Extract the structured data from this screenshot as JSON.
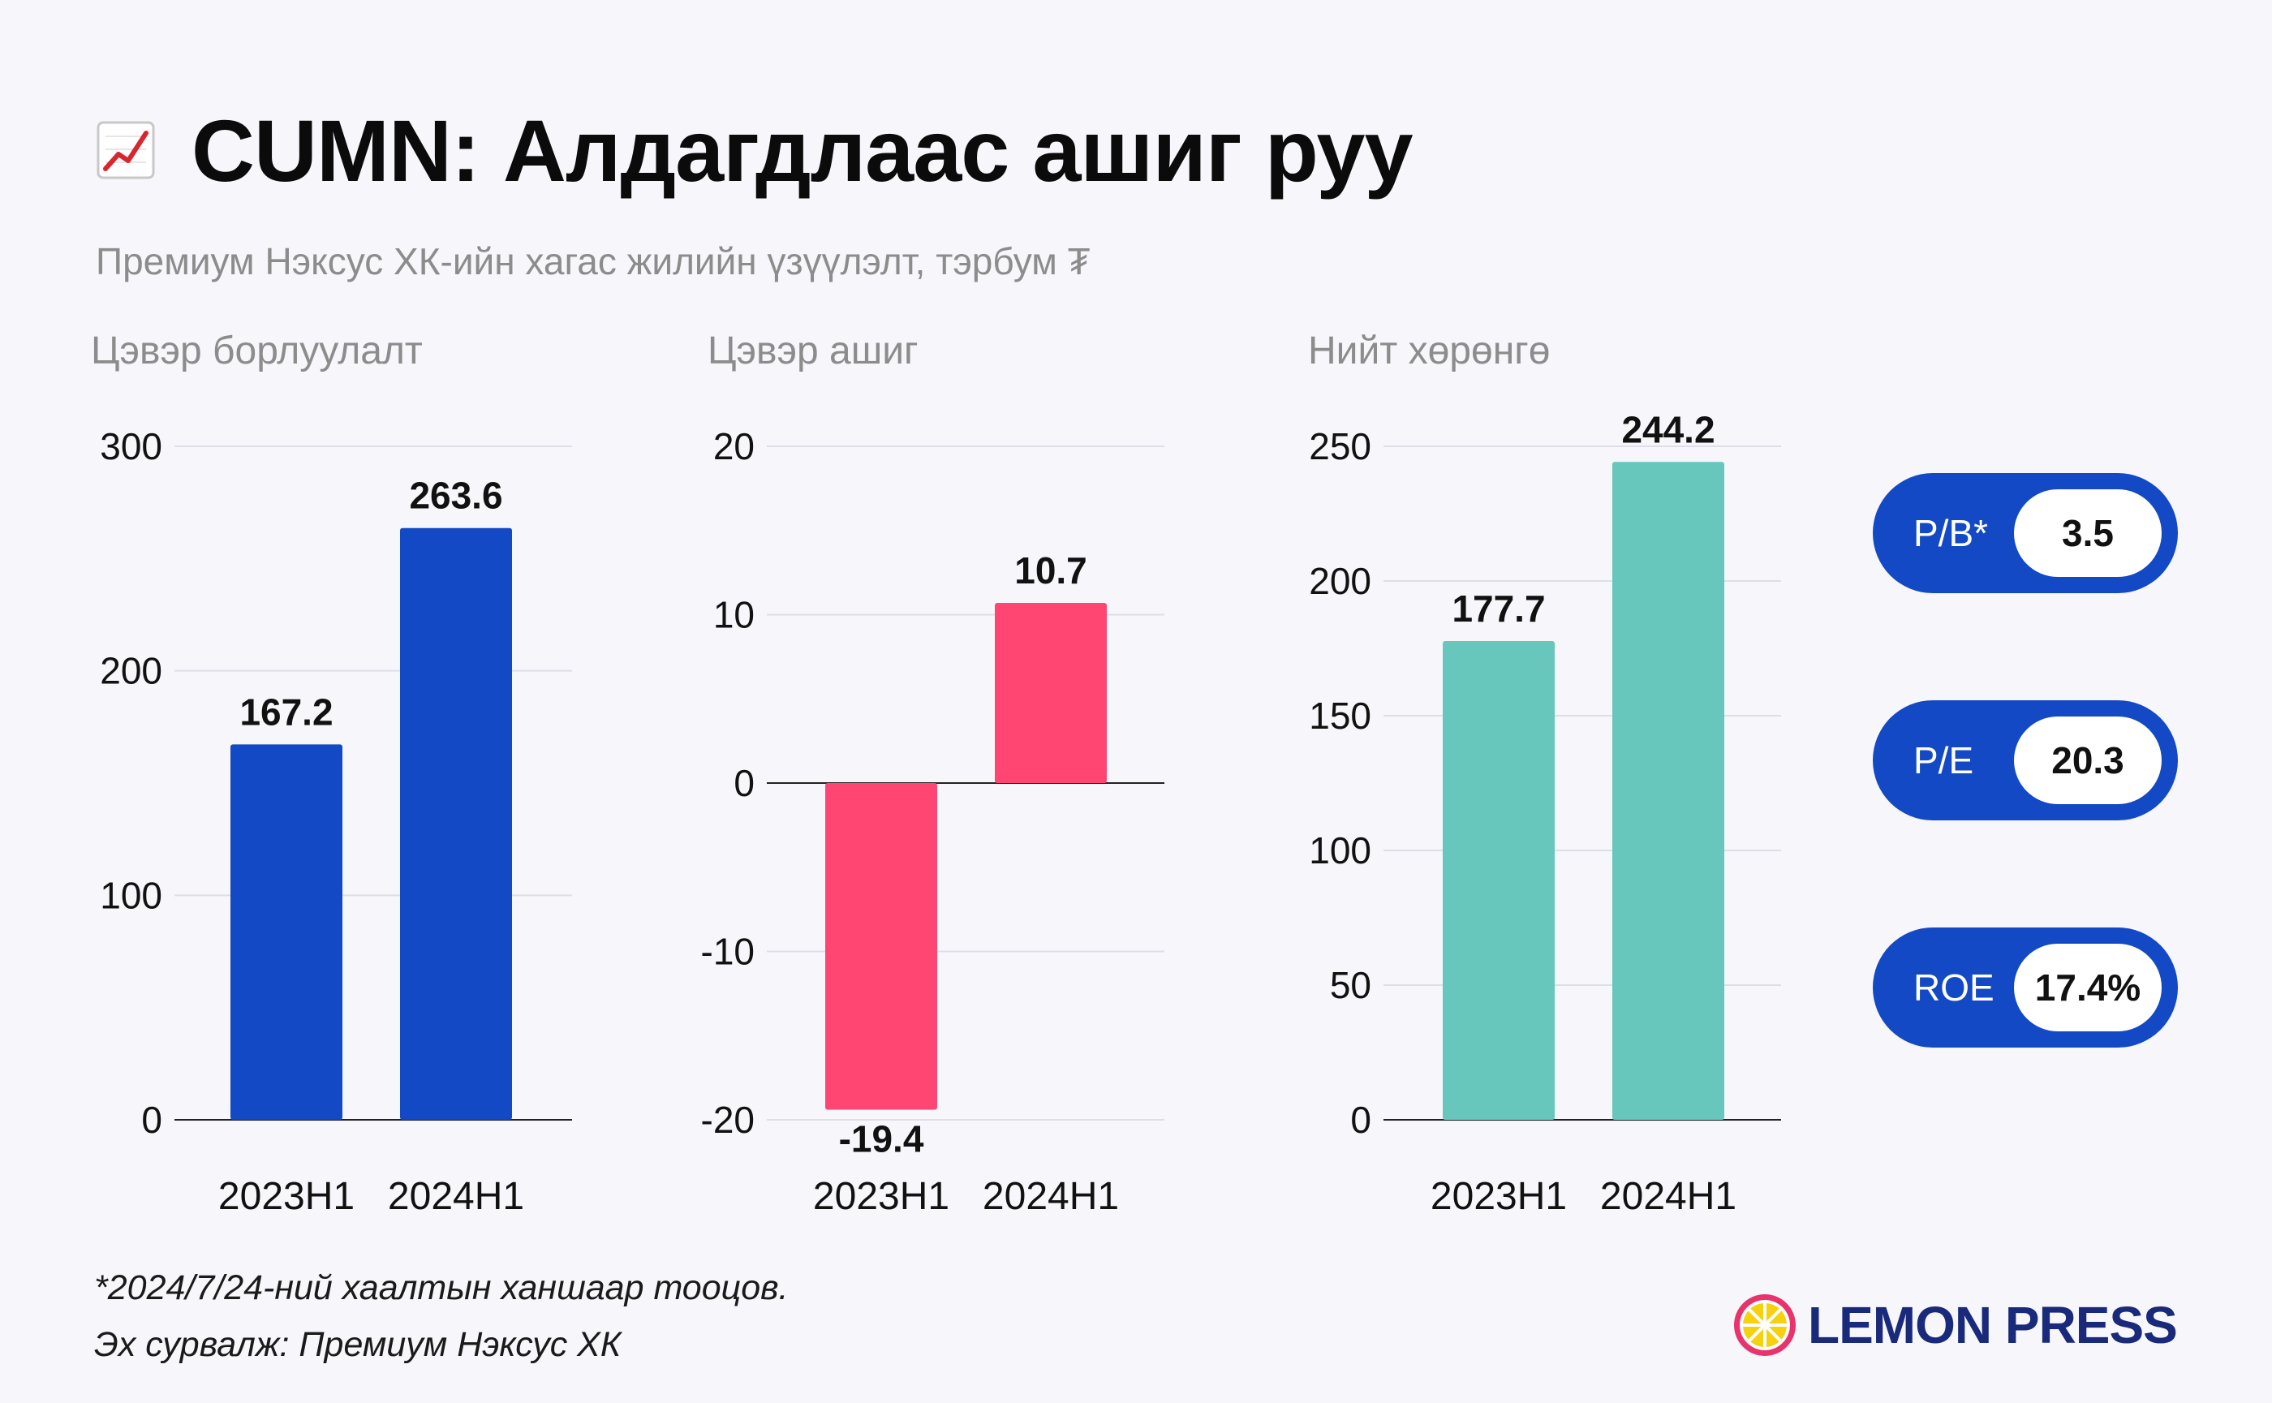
{
  "header": {
    "title_icon": "chart-increasing-icon",
    "title": "CUMN: Алдагдлаас ашиг руу",
    "subtitle": "Премиум Нэксус ХК-ийн хагас жилийн үзүүлэлт, тэрбум ₮"
  },
  "chart_data": [
    {
      "type": "bar",
      "title": "Цэвэр борлуулалт",
      "categories": [
        "2023H1",
        "2024H1"
      ],
      "values": [
        167.2,
        263.6
      ],
      "value_labels": [
        "167.2",
        "263.6"
      ],
      "yticks": [
        "0",
        "100",
        "200",
        "300"
      ],
      "ylim": [
        0,
        300
      ],
      "color": "#1349c4",
      "grid": true
    },
    {
      "type": "bar",
      "title": "Цэвэр ашиг",
      "categories": [
        "2023H1",
        "2024H1"
      ],
      "values": [
        -19.4,
        10.7
      ],
      "value_labels": [
        "-19.4",
        "10.7"
      ],
      "yticks": [
        "-20",
        "-10",
        "0",
        "10",
        "20"
      ],
      "ylim": [
        -20,
        20
      ],
      "color": "#ff4673",
      "grid": true
    },
    {
      "type": "bar",
      "title": "Нийт хөрөнгө",
      "categories": [
        "2023H1",
        "2024H1"
      ],
      "values": [
        177.7,
        244.2
      ],
      "value_labels": [
        "177.7",
        "244.2"
      ],
      "yticks": [
        "0",
        "50",
        "100",
        "150",
        "200",
        "250"
      ],
      "ylim": [
        0,
        250
      ],
      "color": "#67c7bc",
      "grid": true
    }
  ],
  "ratios": [
    {
      "label": "P/B*",
      "value": "3.5"
    },
    {
      "label": "P/E",
      "value": "20.3"
    },
    {
      "label": "ROE",
      "value": "17.4%"
    }
  ],
  "colors": {
    "pill": "#1349c4",
    "background": "#f6f6fb"
  },
  "footnote": {
    "line1": "*2024/7/24-ний хаалтын ханшаар тооцов.",
    "line2": "Эх сурвалж: Премиум Нэксус ХК"
  },
  "logo": {
    "icon": "lemon-slice-icon",
    "text": "LEMON PRESS"
  }
}
